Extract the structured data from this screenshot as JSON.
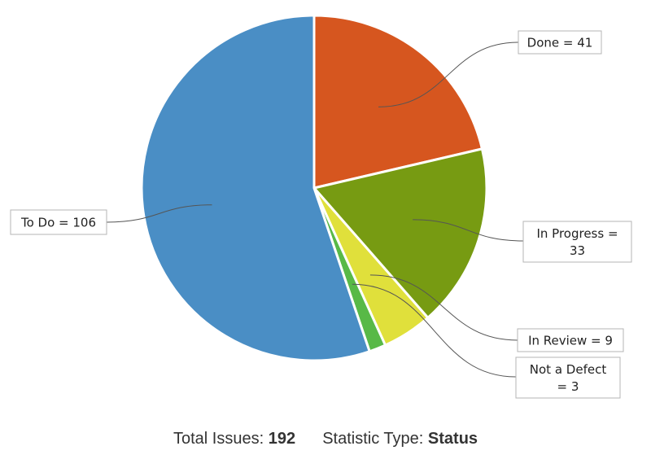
{
  "chart_data": {
    "type": "pie",
    "categories": [
      "Done",
      "In Progress",
      "In Review",
      "Not a Defect",
      "To Do"
    ],
    "values": [
      41,
      33,
      9,
      3,
      106
    ],
    "labels": [
      [
        "Done = 41"
      ],
      [
        "In Progress =",
        "33"
      ],
      [
        "In Review = 9"
      ],
      [
        "Not a Defect",
        "= 3"
      ],
      [
        "To Do = 106"
      ]
    ],
    "colors": [
      "#d6561f",
      "#779b12",
      "#e0e03b",
      "#58b947",
      "#4a8ec5"
    ],
    "start_angle_deg": 0,
    "direction": "clockwise",
    "legend": "none"
  },
  "footer": {
    "total_label": "Total Issues:",
    "total_value": "192",
    "stat_label": "Statistic Type:",
    "stat_value": "Status"
  }
}
